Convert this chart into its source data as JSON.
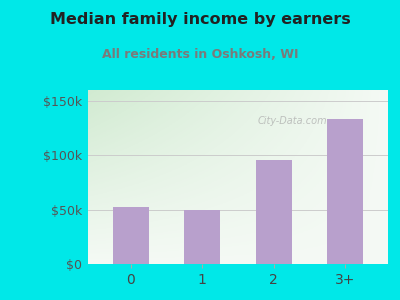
{
  "categories": [
    "0",
    "1",
    "2",
    "3+"
  ],
  "values": [
    52000,
    50000,
    96000,
    133000
  ],
  "bar_color": "#b8a0cc",
  "title": "Median family income by earners",
  "subtitle": "All residents in Oshkosh, WI",
  "title_color": "#222222",
  "subtitle_color": "#7a7a7a",
  "background_color": "#00e8e8",
  "ylim": [
    0,
    160000
  ],
  "yticks": [
    0,
    50000,
    100000,
    150000
  ],
  "ytick_labels": [
    "$0",
    "$50k",
    "$100k",
    "$150k"
  ],
  "watermark": "City-Data.com",
  "grad_topleft": [
    0.82,
    0.92,
    0.82
  ],
  "grad_bottomright": [
    0.96,
    0.98,
    0.96
  ]
}
